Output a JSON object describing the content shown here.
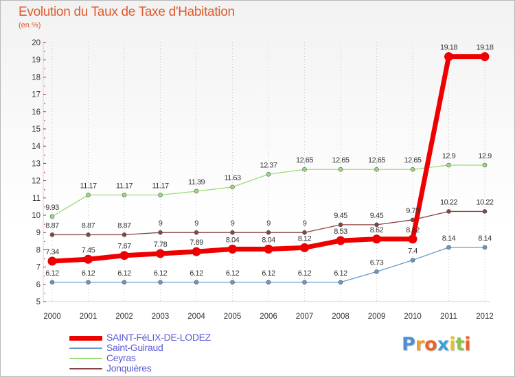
{
  "header": {
    "title": "Evolution du Taux de Taxe d'Habitation",
    "subtitle": "(en %)"
  },
  "brand": {
    "letters": [
      "P",
      "r",
      "o",
      "x",
      "i",
      "t",
      "i"
    ],
    "colors": [
      "#4a90d9",
      "#f0a020",
      "#e8642a",
      "#3aa2d8",
      "#e8c020",
      "#8bc34a",
      "#e8642a"
    ]
  },
  "chart_data": {
    "type": "line",
    "title": "Evolution du Taux de Taxe d'Habitation",
    "ylabel": "(en %)",
    "xlabel": "",
    "x": [
      2000,
      2001,
      2002,
      2003,
      2004,
      2005,
      2006,
      2007,
      2008,
      2009,
      2010,
      2011,
      2012
    ],
    "ylim": [
      5,
      20
    ],
    "yticks": [
      5,
      6,
      7,
      8,
      9,
      10,
      11,
      12,
      13,
      14,
      15,
      16,
      17,
      18,
      19,
      20
    ],
    "grid": "vertical dotted",
    "legend_position": "bottom-left",
    "series": [
      {
        "name": "Saint-Guiraud",
        "color": "#6699cc",
        "values": [
          6.12,
          6.12,
          6.12,
          6.12,
          6.12,
          6.12,
          6.12,
          6.12,
          6.12,
          6.73,
          7.4,
          8.14,
          8.14
        ],
        "labels": [
          "6.12",
          "6.12",
          "6.12",
          "6.12",
          "6.12",
          "6.12",
          "6.12",
          "6.12",
          "6.12",
          "6.73",
          "7.4",
          "8.14",
          "8.14"
        ]
      },
      {
        "name": "Ceyras",
        "color": "#99dd77",
        "values": [
          9.93,
          11.17,
          11.17,
          11.17,
          11.39,
          11.63,
          12.37,
          12.65,
          12.65,
          12.65,
          12.65,
          12.9,
          12.9
        ],
        "labels": [
          "9.93",
          "11.17",
          "11.17",
          "11.17",
          "11.39",
          "11.63",
          "12.37",
          "12.65",
          "12.65",
          "12.65",
          "12.65",
          "12.9",
          "12.9"
        ]
      },
      {
        "name": "Jonquières",
        "color": "#884444",
        "values": [
          8.87,
          8.87,
          8.87,
          9,
          9,
          9,
          9,
          9,
          9.45,
          9.45,
          9.73,
          10.22,
          10.22
        ],
        "labels": [
          "8.87",
          "8.87",
          "8.87",
          "9",
          "9",
          "9",
          "9",
          "9",
          "9.45",
          "9.45",
          "9.73",
          "10.22",
          "10.22"
        ]
      },
      {
        "name": "SAINT-FéLIX-DE-LODEZ",
        "color": "#ee0000",
        "values": [
          7.34,
          7.45,
          7.67,
          7.78,
          7.89,
          8.04,
          8.04,
          8.12,
          8.53,
          8.62,
          8.62,
          19.18,
          19.18
        ],
        "labels": [
          "7.34",
          "7.45",
          "7.67",
          "7.78",
          "7.89",
          "8.04",
          "8.04",
          "8.12",
          "8.53",
          "8.62",
          "8.62",
          "19.18",
          "19.18"
        ]
      }
    ],
    "legend_order": [
      "SAINT-FéLIX-DE-LODEZ",
      "Saint-Guiraud",
      "Ceyras",
      "Jonquières"
    ]
  }
}
